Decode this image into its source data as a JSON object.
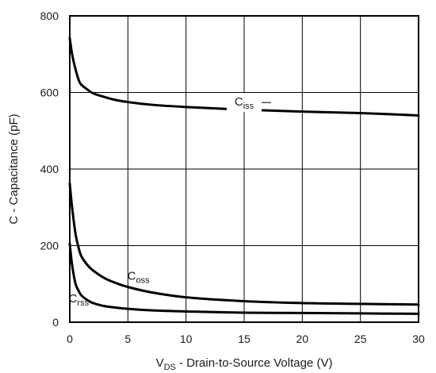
{
  "chart_data": {
    "type": "line",
    "title": "",
    "xlabel": {
      "main": "V",
      "sub": "DS",
      "rest": " - Drain-to-Source Voltage (V)"
    },
    "ylabel": "C - Capacitance (pF)",
    "xlim": [
      0,
      30
    ],
    "ylim": [
      0,
      800
    ],
    "xticks": [
      "0",
      "5",
      "10",
      "15",
      "20",
      "25",
      "30"
    ],
    "yticks": [
      "0",
      "200",
      "400",
      "600",
      "800"
    ],
    "grid": true,
    "series": [
      {
        "name": {
          "main": "C",
          "sub": "iss"
        },
        "x": [
          0,
          0.2,
          0.5,
          0.8,
          1,
          1.5,
          2,
          3,
          4,
          5,
          7,
          10,
          15,
          20,
          25,
          30
        ],
        "y": [
          742,
          700,
          660,
          630,
          620,
          608,
          598,
          588,
          580,
          575,
          568,
          562,
          555,
          550,
          546,
          540
        ]
      },
      {
        "name": {
          "main": "C",
          "sub": "oss"
        },
        "x": [
          0,
          0.2,
          0.5,
          0.8,
          1,
          1.5,
          2,
          3,
          4,
          5,
          7,
          10,
          15,
          20,
          25,
          30
        ],
        "y": [
          362,
          300,
          230,
          190,
          172,
          150,
          135,
          115,
          102,
          92,
          78,
          65,
          55,
          50,
          48,
          46
        ]
      },
      {
        "name": {
          "main": "C",
          "sub": "rss"
        },
        "x": [
          0,
          0.2,
          0.5,
          0.8,
          1,
          1.5,
          2,
          3,
          4,
          5,
          7,
          10,
          15,
          20,
          25,
          30
        ],
        "y": [
          205,
          150,
          100,
          80,
          70,
          58,
          50,
          42,
          38,
          35,
          31,
          28,
          25,
          24,
          23,
          22
        ]
      }
    ],
    "annotations": [
      {
        "series": 0,
        "at_x": 15
      },
      {
        "series": 1,
        "at_x": 7
      },
      {
        "series": 2,
        "at_x": 2
      }
    ]
  }
}
